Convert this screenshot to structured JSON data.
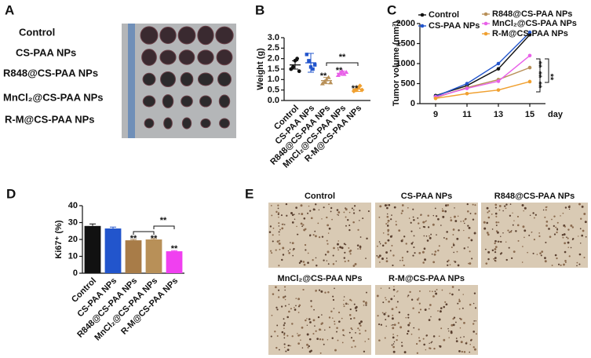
{
  "panel_a": {
    "panel_label": "A",
    "labels": [
      "Control",
      "CS-PAA NPs",
      "R848@CS-PAA NPs",
      "MnCl₂@CS-PAA NPs",
      "R-M@CS-PAA NPs"
    ]
  },
  "chart_data": [
    {
      "panel_label": "B",
      "type": "dotplot",
      "ylabel": "Weight (g)",
      "categories": [
        "Control",
        "CS-PAA NPs",
        "R848@CS-PAA NPs",
        "MnCl₂@CS-PAA NPs",
        "R-M@CS-PAA NPs"
      ],
      "colors": [
        "#111111",
        "#2255cc",
        "#b89058",
        "#e860e8",
        "#f0a030"
      ],
      "points": [
        [
          1.5,
          1.6,
          1.9,
          2.0,
          1.4
        ],
        [
          2.2,
          1.9,
          1.6,
          1.5,
          1.7
        ],
        [
          0.8,
          0.9,
          1.0,
          1.1,
          0.85
        ],
        [
          1.2,
          1.3,
          1.4,
          1.25,
          1.35
        ],
        [
          0.45,
          0.5,
          0.6,
          0.7,
          0.5
        ]
      ],
      "means": [
        1.7,
        1.8,
        0.95,
        1.3,
        0.55
      ],
      "errors": [
        0.2,
        0.45,
        0.15,
        0.1,
        0.12
      ],
      "ylim": [
        0,
        3
      ],
      "yticks": [
        {
          "value": 0,
          "label": "0.0"
        },
        {
          "value": 0.5,
          "label": "0.5"
        },
        {
          "value": 1,
          "label": "1.0"
        },
        {
          "value": 1.5,
          "label": "1.5"
        },
        {
          "value": 2,
          "label": "2.0"
        },
        {
          "value": 2.5,
          "label": "2.5"
        },
        {
          "value": 3,
          "label": "3.0"
        }
      ],
      "annotations": [
        "**",
        "**",
        "**",
        "**"
      ]
    },
    {
      "panel_label": "C",
      "type": "line",
      "ylabel": "Tumor volume (mm³)",
      "xlabel": "day",
      "x": [
        9,
        11,
        13,
        15
      ],
      "xlim": [
        8,
        16
      ],
      "xticks": [
        9,
        11,
        13,
        15
      ],
      "ylim": [
        0,
        2000
      ],
      "yticks": [
        0,
        500,
        1000,
        1500,
        2000
      ],
      "series": [
        {
          "name": "Control",
          "color": "#111111",
          "values": [
            200,
            450,
            870,
            1720
          ]
        },
        {
          "name": "CS-PAA NPs",
          "color": "#2255cc",
          "values": [
            180,
            500,
            1000,
            1780
          ]
        },
        {
          "name": "R848@CS-PAA NPs",
          "color": "#b89058",
          "values": [
            150,
            400,
            600,
            900
          ]
        },
        {
          "name": "MnCl₂@CS-PAA NPs",
          "color": "#e860e8",
          "values": [
            170,
            380,
            560,
            1200
          ]
        },
        {
          "name": "R-M@CS-PAA NPs",
          "color": "#f0a030",
          "values": [
            130,
            250,
            340,
            550
          ]
        }
      ],
      "annotations": [
        "**",
        "**",
        "**",
        "**"
      ]
    },
    {
      "panel_label": "D",
      "type": "bar",
      "ylabel": "Ki67⁺ (%)",
      "categories": [
        "Control",
        "CS-PAA NPs",
        "R848@CS-PAA NPs",
        "MnCl₂@CS-PAA NPs",
        "R-M@CS-PAA NPs"
      ],
      "values": [
        28,
        26.5,
        19.5,
        20,
        13
      ],
      "errors": [
        1.2,
        0.8,
        0.5,
        0.5,
        0.4
      ],
      "colors": [
        "#111111",
        "#2255cc",
        "#a87c48",
        "#b89058",
        "#f040f0"
      ],
      "ylim": [
        0,
        40
      ],
      "yticks": [
        0,
        10,
        20,
        30,
        40
      ],
      "annotations": [
        "**",
        "**",
        "**",
        "**"
      ]
    }
  ],
  "panel_e": {
    "panel_label": "E",
    "labels": [
      "Control",
      "CS-PAA NPs",
      "R848@CS-PAA NPs",
      "MnCl₂@CS-PAA NPs",
      "R-M@CS-PAA NPs"
    ]
  }
}
